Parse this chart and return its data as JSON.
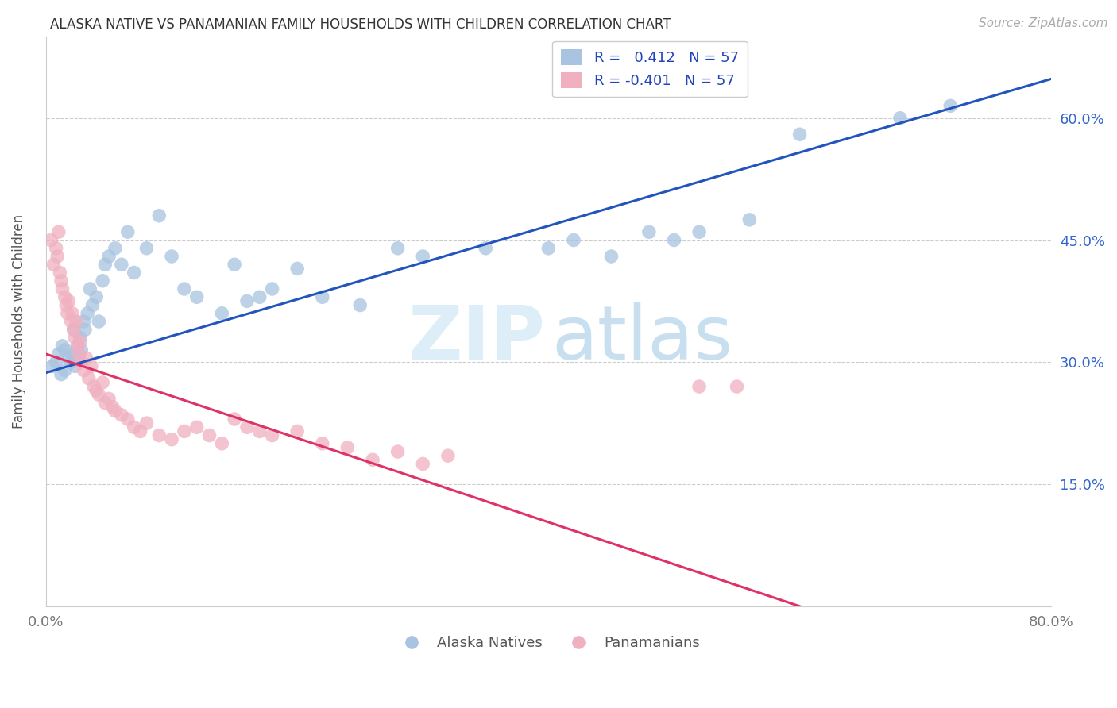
{
  "title": "ALASKA NATIVE VS PANAMANIAN FAMILY HOUSEHOLDS WITH CHILDREN CORRELATION CHART",
  "source": "Source: ZipAtlas.com",
  "ylabel": "Family Households with Children",
  "blue_color": "#a8c4e0",
  "pink_color": "#f0b0c0",
  "blue_line_color": "#2255bb",
  "pink_line_color": "#dd3366",
  "xlim": [
    0.0,
    0.8
  ],
  "ylim": [
    0.0,
    0.7
  ],
  "xticks": [
    0.0,
    0.1,
    0.2,
    0.3,
    0.4,
    0.5,
    0.6,
    0.7,
    0.8
  ],
  "xticklabels": [
    "0.0%",
    "",
    "",
    "",
    "",
    "",
    "",
    "",
    "80.0%"
  ],
  "yticks": [
    0.0,
    0.15,
    0.3,
    0.45,
    0.6
  ],
  "yticklabels_right": [
    "",
    "15.0%",
    "30.0%",
    "45.0%",
    "60.0%"
  ],
  "legend1_text": "R =   0.412   N = 57",
  "legend2_text": "R = -0.401   N = 57",
  "bottom_legend1": "Alaska Natives",
  "bottom_legend2": "Panamanians",
  "alaska_x": [
    0.005,
    0.008,
    0.01,
    0.012,
    0.013,
    0.015,
    0.015,
    0.018,
    0.02,
    0.021,
    0.022,
    0.023,
    0.024,
    0.025,
    0.026,
    0.027,
    0.028,
    0.03,
    0.031,
    0.033,
    0.035,
    0.037,
    0.04,
    0.042,
    0.045,
    0.047,
    0.05,
    0.055,
    0.06,
    0.065,
    0.07,
    0.08,
    0.09,
    0.1,
    0.11,
    0.12,
    0.14,
    0.15,
    0.16,
    0.17,
    0.18,
    0.2,
    0.22,
    0.25,
    0.28,
    0.3,
    0.35,
    0.4,
    0.42,
    0.45,
    0.48,
    0.5,
    0.52,
    0.56,
    0.6,
    0.68,
    0.72
  ],
  "alaska_y": [
    0.295,
    0.3,
    0.31,
    0.285,
    0.32,
    0.29,
    0.315,
    0.305,
    0.3,
    0.31,
    0.34,
    0.295,
    0.305,
    0.32,
    0.31,
    0.33,
    0.315,
    0.35,
    0.34,
    0.36,
    0.39,
    0.37,
    0.38,
    0.35,
    0.4,
    0.42,
    0.43,
    0.44,
    0.42,
    0.46,
    0.41,
    0.44,
    0.48,
    0.43,
    0.39,
    0.38,
    0.36,
    0.42,
    0.375,
    0.38,
    0.39,
    0.415,
    0.38,
    0.37,
    0.44,
    0.43,
    0.44,
    0.44,
    0.45,
    0.43,
    0.46,
    0.45,
    0.46,
    0.475,
    0.58,
    0.6,
    0.615
  ],
  "panama_x": [
    0.004,
    0.006,
    0.008,
    0.009,
    0.01,
    0.011,
    0.012,
    0.013,
    0.015,
    0.016,
    0.017,
    0.018,
    0.02,
    0.021,
    0.022,
    0.023,
    0.024,
    0.025,
    0.026,
    0.027,
    0.028,
    0.03,
    0.032,
    0.034,
    0.036,
    0.038,
    0.04,
    0.042,
    0.045,
    0.047,
    0.05,
    0.053,
    0.055,
    0.06,
    0.065,
    0.07,
    0.075,
    0.08,
    0.09,
    0.1,
    0.11,
    0.12,
    0.13,
    0.14,
    0.15,
    0.16,
    0.17,
    0.18,
    0.2,
    0.22,
    0.24,
    0.26,
    0.28,
    0.3,
    0.32,
    0.52,
    0.55
  ],
  "panama_y": [
    0.45,
    0.42,
    0.44,
    0.43,
    0.46,
    0.41,
    0.4,
    0.39,
    0.38,
    0.37,
    0.36,
    0.375,
    0.35,
    0.36,
    0.34,
    0.33,
    0.35,
    0.32,
    0.31,
    0.325,
    0.3,
    0.29,
    0.305,
    0.28,
    0.295,
    0.27,
    0.265,
    0.26,
    0.275,
    0.25,
    0.255,
    0.245,
    0.24,
    0.235,
    0.23,
    0.22,
    0.215,
    0.225,
    0.21,
    0.205,
    0.215,
    0.22,
    0.21,
    0.2,
    0.23,
    0.22,
    0.215,
    0.21,
    0.215,
    0.2,
    0.195,
    0.18,
    0.19,
    0.175,
    0.185,
    0.27,
    0.27
  ],
  "blue_line_x0": 0.0,
  "blue_line_y0": 0.287,
  "blue_line_x1": 0.8,
  "blue_line_y1": 0.648,
  "pink_line_x0": 0.0,
  "pink_line_y0": 0.31,
  "pink_line_x1": 0.6,
  "pink_line_y1": 0.0
}
